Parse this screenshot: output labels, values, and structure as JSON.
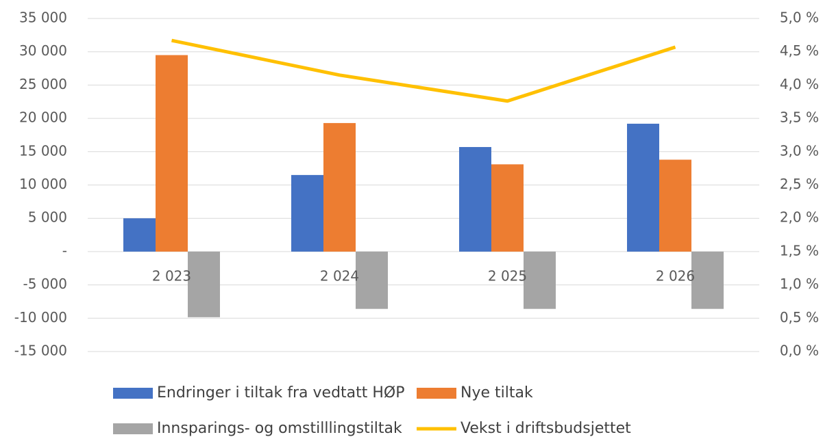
{
  "chart_data": {
    "type": "bar",
    "categories": [
      "2 023",
      "2 024",
      "2 025",
      "2 026"
    ],
    "series": [
      {
        "name": "Endringer i tiltak fra vedtatt HØP",
        "color": "#4472c4",
        "values": [
          5000,
          11500,
          15700,
          19200
        ]
      },
      {
        "name": "Nye tiltak",
        "color": "#ed7d31",
        "values": [
          29500,
          19300,
          13100,
          13800
        ]
      },
      {
        "name": "Innsparings- og omstilllingstiltak",
        "color": "#a5a5a5",
        "values": [
          -9850,
          -8600,
          -8600,
          -8600
        ]
      },
      {
        "name": "Vekst i driftsbudsjettet",
        "color": "#ffc000",
        "type": "line",
        "axis": "y2",
        "values": [
          4.67,
          4.15,
          3.76,
          4.57
        ]
      }
    ],
    "ylim": [
      -15000,
      35000
    ],
    "yticks": [
      {
        "value": -15000,
        "label": "-15 000"
      },
      {
        "value": -10000,
        "label": "-10 000"
      },
      {
        "value": -5000,
        "label": "-5 000"
      },
      {
        "value": 0,
        "label": "-"
      },
      {
        "value": 5000,
        "label": "5 000"
      },
      {
        "value": 10000,
        "label": "10 000"
      },
      {
        "value": 15000,
        "label": "15 000"
      },
      {
        "value": 20000,
        "label": "20 000"
      },
      {
        "value": 25000,
        "label": "25 000"
      },
      {
        "value": 30000,
        "label": "30 000"
      },
      {
        "value": 35000,
        "label": "35 000"
      }
    ],
    "y2lim": [
      0,
      5
    ],
    "y2ticks": [
      {
        "value": 0,
        "label": "0,0 %"
      },
      {
        "value": 0.5,
        "label": "0,5 %"
      },
      {
        "value": 1,
        "label": "1,0 %"
      },
      {
        "value": 1.5,
        "label": "1,5 %"
      },
      {
        "value": 2,
        "label": "2,0 %"
      },
      {
        "value": 2.5,
        "label": "2,5 %"
      },
      {
        "value": 3,
        "label": "3,0 %"
      },
      {
        "value": 3.5,
        "label": "3,5 %"
      },
      {
        "value": 4,
        "label": "4,0 %"
      },
      {
        "value": 4.5,
        "label": "4,5 %"
      },
      {
        "value": 5,
        "label": "5,0 %"
      }
    ],
    "grid": true,
    "legend": "bottom"
  }
}
